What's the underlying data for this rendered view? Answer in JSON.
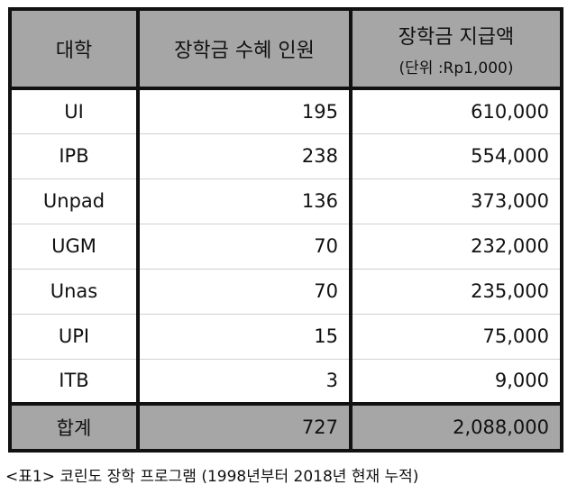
{
  "table": {
    "headers": {
      "university": "대학",
      "recipients": "장학금 수혜 인원",
      "amount": "장학금 지급액",
      "amount_unit": "(단위 :Rp1,000)"
    },
    "rows": [
      {
        "university": "UI",
        "recipients": "195",
        "amount": "610,000"
      },
      {
        "university": "IPB",
        "recipients": "238",
        "amount": "554,000"
      },
      {
        "university": "Unpad",
        "recipients": "136",
        "amount": "373,000"
      },
      {
        "university": "UGM",
        "recipients": "70",
        "amount": "232,000"
      },
      {
        "university": "Unas",
        "recipients": "70",
        "amount": "235,000"
      },
      {
        "university": "UPI",
        "recipients": "15",
        "amount": "75,000"
      },
      {
        "university": "ITB",
        "recipients": "3",
        "amount": "9,000"
      }
    ],
    "total": {
      "label": "합계",
      "recipients": "727",
      "amount": "2,088,000"
    }
  },
  "caption": "<표1> 코린도 장학 프로그램 (1998년부터 2018년 현재 누적)"
}
